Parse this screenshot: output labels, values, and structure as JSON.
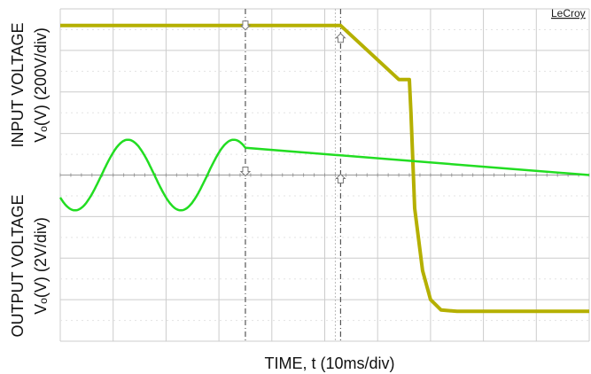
{
  "brand": "LeCroy",
  "chart_data": {
    "type": "line",
    "xlabel": "TIME, t (10ms/div)",
    "ylabel_top": [
      "INPUT VOLTAGE",
      "Vₒ(V) (200V/div)"
    ],
    "ylabel_bottom": [
      "OUTPUT VOLTAGE",
      "Vₒ(V) (2V/div)"
    ],
    "x_divisions": 10,
    "y_divisions": 8,
    "grid": true,
    "colors": {
      "input": "#b5b000",
      "output": "#22dd22",
      "grid": "#cccccc",
      "cursor": "#555555"
    },
    "cursors_div": [
      3.5,
      5.3
    ],
    "series": [
      {
        "key": "input",
        "x_div": [
          0,
          1,
          2,
          3,
          4,
          5,
          5.3,
          6.4,
          6.6,
          6.63,
          6.7,
          6.85,
          7.0,
          7.2,
          7.5,
          8,
          9,
          10
        ],
        "y_div": [
          7.6,
          7.6,
          7.6,
          7.6,
          7.6,
          7.6,
          7.6,
          6.3,
          6.3,
          5.5,
          3.2,
          1.7,
          1.0,
          0.75,
          0.72,
          0.72,
          0.72,
          0.72
        ]
      },
      {
        "key": "output",
        "type": "sine_then_flat",
        "start_div": 0,
        "end_div": 3.5,
        "center_div": 4.0,
        "amplitude_div": 0.85,
        "period_div": 2.0,
        "phase_div": 0.78,
        "flat_div": 4.0
      }
    ]
  }
}
